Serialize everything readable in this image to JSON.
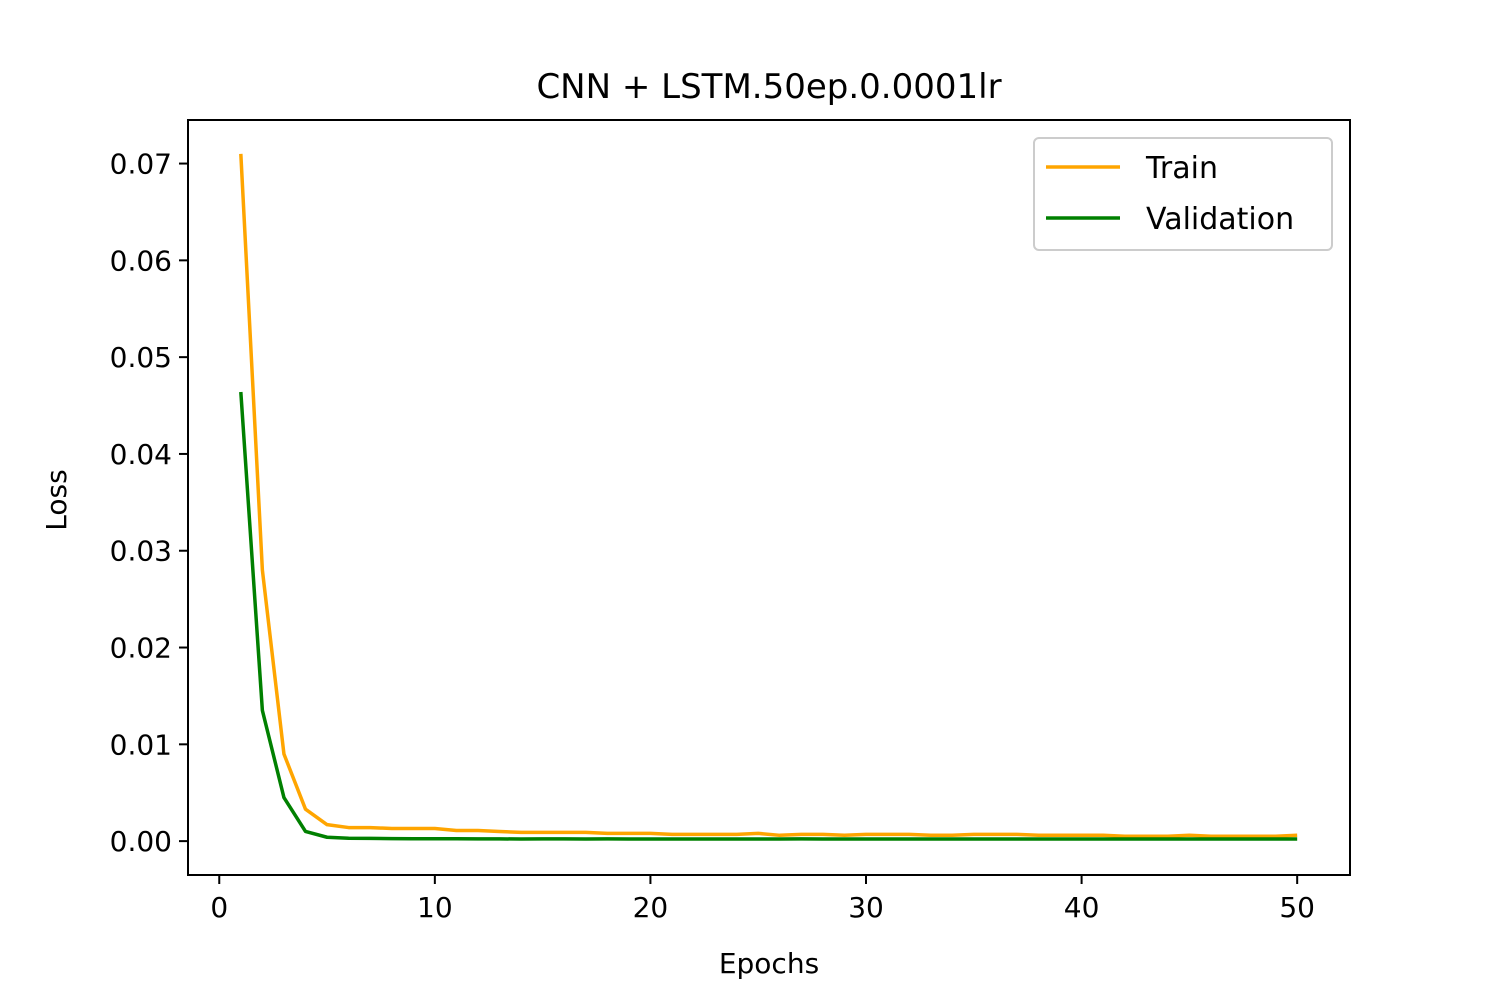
{
  "chart_data": {
    "type": "line",
    "title": "CNN + LSTM.50ep.0.0001lr",
    "xlabel": "Epochs",
    "ylabel": "Loss",
    "xlim": [
      -1.45,
      52.45
    ],
    "ylim": [
      -0.0035,
      0.0745
    ],
    "xticks": [
      0,
      10,
      20,
      30,
      40,
      50
    ],
    "xtick_labels": [
      "0",
      "10",
      "20",
      "30",
      "40",
      "50"
    ],
    "yticks": [
      0.0,
      0.01,
      0.02,
      0.03,
      0.04,
      0.05,
      0.06,
      0.07
    ],
    "ytick_labels": [
      "0.00",
      "0.01",
      "0.02",
      "0.03",
      "0.04",
      "0.05",
      "0.06",
      "0.07"
    ],
    "grid": false,
    "legend_position": "top-right",
    "x": [
      1,
      2,
      3,
      4,
      5,
      6,
      7,
      8,
      9,
      10,
      11,
      12,
      13,
      14,
      15,
      16,
      17,
      18,
      19,
      20,
      21,
      22,
      23,
      24,
      25,
      26,
      27,
      28,
      29,
      30,
      31,
      32,
      33,
      34,
      35,
      36,
      37,
      38,
      39,
      40,
      41,
      42,
      43,
      44,
      45,
      46,
      47,
      48,
      49,
      50
    ],
    "series": [
      {
        "name": "Train",
        "color": "#ffa500",
        "values": [
          0.071,
          0.028,
          0.009,
          0.0033,
          0.0017,
          0.0014,
          0.0014,
          0.0013,
          0.0013,
          0.0013,
          0.0011,
          0.0011,
          0.001,
          0.0009,
          0.0009,
          0.0009,
          0.0009,
          0.0008,
          0.0008,
          0.0008,
          0.0007,
          0.0007,
          0.0007,
          0.0007,
          0.0008,
          0.0006,
          0.0007,
          0.0007,
          0.0006,
          0.0007,
          0.0007,
          0.0007,
          0.0006,
          0.0006,
          0.0007,
          0.0007,
          0.0007,
          0.0006,
          0.0006,
          0.0006,
          0.0006,
          0.0005,
          0.0005,
          0.0005,
          0.0006,
          0.0005,
          0.0005,
          0.0005,
          0.0005,
          0.0006
        ]
      },
      {
        "name": "Validation",
        "color": "#008000",
        "values": [
          0.0464,
          0.0135,
          0.0045,
          0.001,
          0.0004,
          0.0003,
          0.00028,
          0.00026,
          0.00025,
          0.00024,
          0.00024,
          0.00023,
          0.00023,
          0.00022,
          0.00023,
          0.00023,
          0.00022,
          0.00023,
          0.00022,
          0.00022,
          0.00022,
          0.00022,
          0.00022,
          0.00022,
          0.00022,
          0.00022,
          0.00023,
          0.00022,
          0.00022,
          0.00022,
          0.00022,
          0.00022,
          0.00022,
          0.00022,
          0.00022,
          0.00022,
          0.00022,
          0.00022,
          0.00022,
          0.00022,
          0.00022,
          0.00022,
          0.00022,
          0.00022,
          0.00022,
          0.00022,
          0.00022,
          0.00022,
          0.00022,
          0.00022
        ]
      }
    ]
  }
}
